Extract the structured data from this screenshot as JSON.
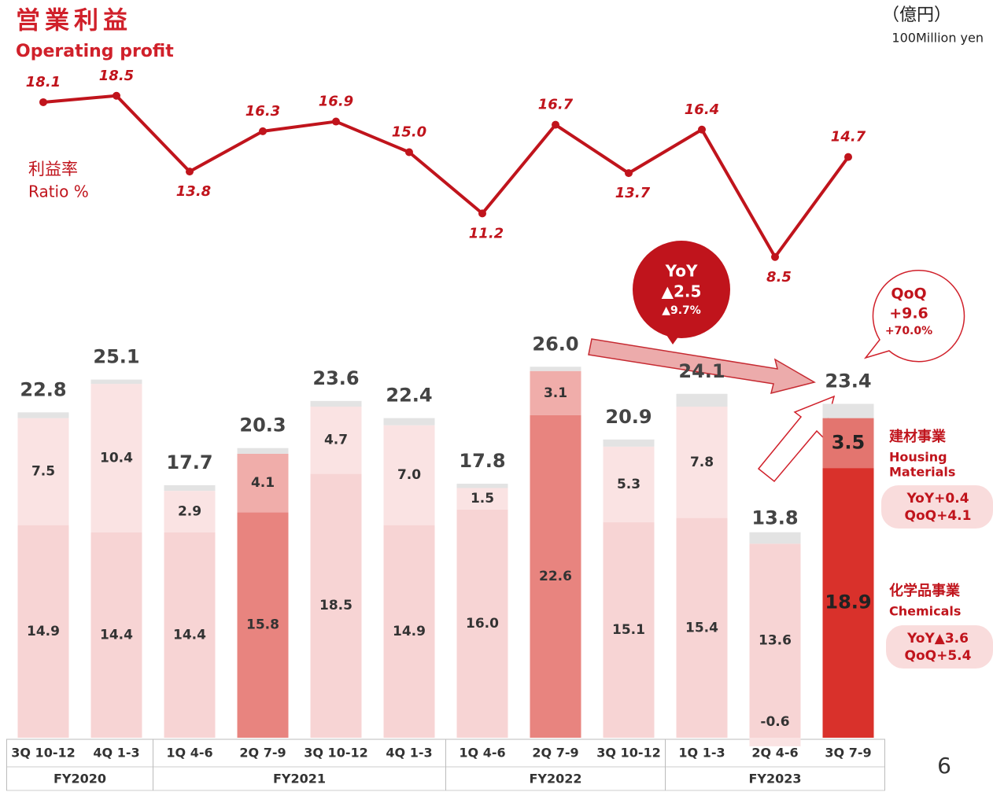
{
  "chart_data": {
    "type": "bar",
    "title": "営業利益",
    "subtitle": "Operating profit",
    "unit": "（億円）",
    "unit_en": "100Million yen",
    "page_number": "6",
    "categories": [
      "3Q 10-12",
      "4Q 1-3",
      "1Q 4-6",
      "2Q 7-9",
      "3Q 10-12",
      "4Q 1-3",
      "1Q 4-6",
      "2Q 7-9",
      "3Q 10-12",
      "1Q 1-3",
      "2Q 4-6",
      "3Q 7-9"
    ],
    "groups": [
      "FY2020",
      "FY2020",
      "FY2021",
      "FY2021",
      "FY2021",
      "FY2021",
      "FY2022",
      "FY2022",
      "FY2022",
      "FY2023",
      "FY2023",
      "FY2023"
    ],
    "ylim": [
      0,
      28
    ],
    "y2lim": [
      0,
      20
    ],
    "series": [
      {
        "name": "化学品事業",
        "name_en": [
          "Chemicals"
        ],
        "notes": [
          "YoY▲3.6",
          "QoQ+5.4"
        ],
        "colors": [
          "#f7d4d4",
          "#f7d4d4",
          "#f7d4d4",
          "#e8847f",
          "#f7d4d4",
          "#f7d4d4",
          "#f7d4d4",
          "#e8847f",
          "#f7d4d4",
          "#f7d4d4",
          "#f7d4d4",
          "#d9312b"
        ],
        "values": [
          14.9,
          14.4,
          14.4,
          15.8,
          18.5,
          14.9,
          16.0,
          22.6,
          15.1,
          15.4,
          13.6,
          18.9
        ],
        "value_labels": [
          "14.9",
          "14.4",
          "14.4",
          "15.8",
          "18.5",
          "14.9",
          "16.0",
          "22.6",
          "15.1",
          "15.4",
          "13.6",
          "18.9"
        ]
      },
      {
        "name": "建材事業",
        "name_en": [
          "Housing",
          "Materials"
        ],
        "notes": [
          "YoY+0.4",
          "QoQ+4.1"
        ],
        "colors": [
          "#fae3e3",
          "#fae3e3",
          "#fae3e3",
          "#f0adaa",
          "#fae3e3",
          "#fae3e3",
          "#fae3e3",
          "#f0adaa",
          "#fae3e3",
          "#fae3e3",
          "#fae3e3",
          "#e3756f"
        ],
        "values": [
          7.5,
          10.4,
          2.9,
          4.1,
          4.7,
          7.0,
          1.5,
          3.1,
          5.3,
          7.8,
          -0.6,
          3.5
        ],
        "value_labels": [
          "7.5",
          "10.4",
          "2.9",
          "4.1",
          "4.7",
          "7.0",
          "1.5",
          "3.1",
          "5.3",
          "7.8",
          "-0.6",
          "3.5"
        ]
      },
      {
        "color": "#e3e3e3",
        "values": [
          0.4,
          0.3,
          0.4,
          0.4,
          0.4,
          0.5,
          0.3,
          0.3,
          0.5,
          0.9,
          0.8,
          1.0
        ]
      },
      {
        "type": "line",
        "axis": "y2",
        "name": "利益率",
        "name_en": [
          "Ratio %"
        ],
        "color": "#c0141c",
        "values": [
          18.1,
          18.5,
          13.8,
          16.3,
          16.9,
          15.0,
          11.2,
          16.7,
          13.7,
          16.4,
          8.5,
          14.7
        ],
        "value_labels": [
          "18.1",
          "18.5",
          "13.8",
          "16.3",
          "16.9",
          "15.0",
          "11.2",
          "16.7",
          "13.7",
          "16.4",
          "8.5",
          "14.7"
        ]
      }
    ],
    "totals": {
      "values": [
        22.8,
        25.1,
        17.7,
        20.3,
        23.6,
        22.4,
        17.8,
        26.0,
        20.9,
        24.1,
        13.8,
        23.4
      ],
      "value_labels": [
        "22.8",
        "25.1",
        "17.7",
        "20.3",
        "23.6",
        "22.4",
        "17.8",
        "26.0",
        "20.9",
        "24.1",
        "13.8",
        "23.4"
      ]
    },
    "annotations": {
      "yoy": [
        "YoY",
        "▲2.5",
        "▲9.7%"
      ],
      "qoq": [
        "QoQ",
        "+9.6",
        "+70.0%"
      ]
    }
  }
}
